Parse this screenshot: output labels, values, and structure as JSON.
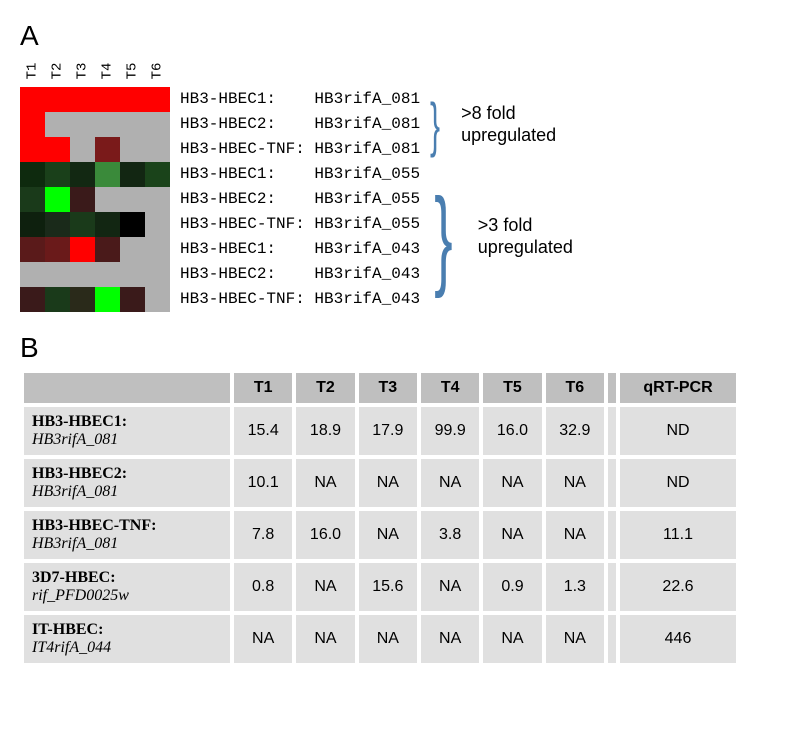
{
  "panelA": {
    "label": "A",
    "columns": [
      "T1",
      "T2",
      "T3",
      "T4",
      "T5",
      "T6"
    ],
    "rows": [
      {
        "label1": "HB3-HBEC1:",
        "label2": "HB3rifA_081",
        "colors": [
          "#ff0000",
          "#ff0000",
          "#ff0000",
          "#ff0000",
          "#ff0000",
          "#ff0000"
        ]
      },
      {
        "label1": "HB3-HBEC2:",
        "label2": "HB3rifA_081",
        "colors": [
          "#ff0000",
          "#b0b0b0",
          "#b0b0b0",
          "#b0b0b0",
          "#b0b0b0",
          "#b0b0b0"
        ]
      },
      {
        "label1": "HB3-HBEC-TNF:",
        "label2": "HB3rifA_081",
        "colors": [
          "#ff0000",
          "#ff0000",
          "#b0b0b0",
          "#7a1a1a",
          "#b0b0b0",
          "#b0b0b0"
        ]
      },
      {
        "label1": "HB3-HBEC1:",
        "label2": "HB3rifA_055",
        "colors": [
          "#0e2a0e",
          "#1a401a",
          "#122812",
          "#3a8a3a",
          "#122612",
          "#1a431a"
        ]
      },
      {
        "label1": "HB3-HBEC2:",
        "label2": "HB3rifA_055",
        "colors": [
          "#1a3a1a",
          "#00ff00",
          "#3a1a1a",
          "#b0b0b0",
          "#b0b0b0",
          "#b0b0b0"
        ]
      },
      {
        "label1": "HB3-HBEC-TNF:",
        "label2": "HB3rifA_055",
        "colors": [
          "#0e200e",
          "#1a2a1a",
          "#1a3a1a",
          "#122612",
          "#000000",
          "#b0b0b0"
        ]
      },
      {
        "label1": "HB3-HBEC1:",
        "label2": "HB3rifA_043",
        "colors": [
          "#5a1a1a",
          "#6a1a1a",
          "#ff0000",
          "#4a1a1a",
          "#b0b0b0",
          "#b0b0b0"
        ]
      },
      {
        "label1": "HB3-HBEC2:",
        "label2": "HB3rifA_043",
        "colors": [
          "#b0b0b0",
          "#b0b0b0",
          "#b0b0b0",
          "#b0b0b0",
          "#b0b0b0",
          "#b0b0b0"
        ]
      },
      {
        "label1": "HB3-HBEC-TNF:",
        "label2": "HB3rifA_043",
        "colors": [
          "#3a1a1a",
          "#1a3a1a",
          "#2a2a1a",
          "#00ff00",
          "#3a1a1a",
          "#b0b0b0"
        ]
      }
    ],
    "bracket1_lines": [
      ">8 fold",
      "upregulated"
    ],
    "bracket2_lines": [
      ">3 fold",
      "upregulated"
    ]
  },
  "panelB": {
    "label": "B",
    "columns": [
      "T1",
      "T2",
      "T3",
      "T4",
      "T5",
      "T6"
    ],
    "qrt_label": "qRT-PCR",
    "rows": [
      {
        "name1": "HB3-HBEC1:",
        "name2": "HB3rifA_081",
        "vals": [
          "15.4",
          "18.9",
          "17.9",
          "99.9",
          "16.0",
          "32.9"
        ],
        "qrt": "ND"
      },
      {
        "name1": "HB3-HBEC2:",
        "name2": "HB3rifA_081",
        "vals": [
          "10.1",
          "NA",
          "NA",
          "NA",
          "NA",
          "NA"
        ],
        "qrt": "ND"
      },
      {
        "name1": "HB3-HBEC-TNF:",
        "name2": "HB3rifA_081",
        "vals": [
          "7.8",
          "16.0",
          "NA",
          "3.8",
          "NA",
          "NA"
        ],
        "qrt": "11.1"
      },
      {
        "name1": "3D7-HBEC:",
        "name2": "rif_PFD0025w",
        "vals": [
          "0.8",
          "NA",
          "15.6",
          "NA",
          "0.9",
          "1.3"
        ],
        "qrt": "22.6"
      },
      {
        "name1": "IT-HBEC:",
        "name2": "IT4rifA_044",
        "vals": [
          "NA",
          "NA",
          "NA",
          "NA",
          "NA",
          "NA"
        ],
        "qrt": "446"
      }
    ],
    "header_bg": "#bfbfbf",
    "cell_bg": "#e0e0e0"
  }
}
